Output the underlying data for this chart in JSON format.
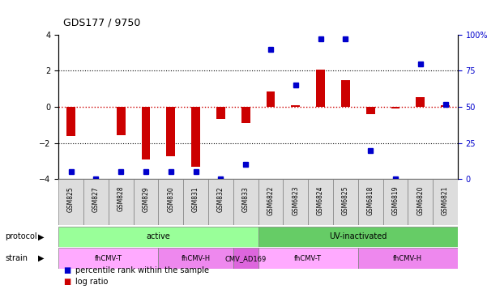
{
  "title": "GDS177 / 9750",
  "samples": [
    "GSM825",
    "GSM827",
    "GSM828",
    "GSM829",
    "GSM830",
    "GSM831",
    "GSM832",
    "GSM833",
    "GSM6822",
    "GSM6823",
    "GSM6824",
    "GSM6825",
    "GSM6818",
    "GSM6819",
    "GSM6820",
    "GSM6821"
  ],
  "log_ratio": [
    -1.6,
    0.0,
    -1.55,
    -2.9,
    -2.75,
    -3.3,
    -0.65,
    -0.9,
    0.85,
    0.1,
    2.05,
    1.5,
    -0.4,
    -0.1,
    0.55,
    0.1
  ],
  "percentile": [
    5,
    0,
    5,
    5,
    5,
    5,
    0,
    10,
    90,
    65,
    97,
    97,
    20,
    0,
    80,
    52
  ],
  "ylim_left": [
    -4,
    4
  ],
  "ylim_right": [
    0,
    100
  ],
  "bar_color": "#cc0000",
  "dot_color": "#0000cc",
  "grid_color": "#000000",
  "zero_line_color": "#cc0000",
  "protocol_groups": [
    {
      "label": "active",
      "start": 0,
      "end": 8,
      "color": "#99ff99"
    },
    {
      "label": "UV-inactivated",
      "start": 8,
      "end": 16,
      "color": "#66cc66"
    }
  ],
  "strain_groups": [
    {
      "label": "fhCMV-T",
      "start": 0,
      "end": 4,
      "color": "#ffaaff"
    },
    {
      "label": "fhCMV-H",
      "start": 4,
      "end": 7,
      "color": "#ee88ee"
    },
    {
      "label": "CMV_AD169",
      "start": 7,
      "end": 8,
      "color": "#dd66dd"
    },
    {
      "label": "fhCMV-T",
      "start": 8,
      "end": 12,
      "color": "#ffaaff"
    },
    {
      "label": "fhCMV-H",
      "start": 12,
      "end": 16,
      "color": "#ee88ee"
    }
  ],
  "legend_items": [
    {
      "label": "log ratio",
      "color": "#cc0000"
    },
    {
      "label": "percentile rank within the sample",
      "color": "#0000cc"
    }
  ]
}
